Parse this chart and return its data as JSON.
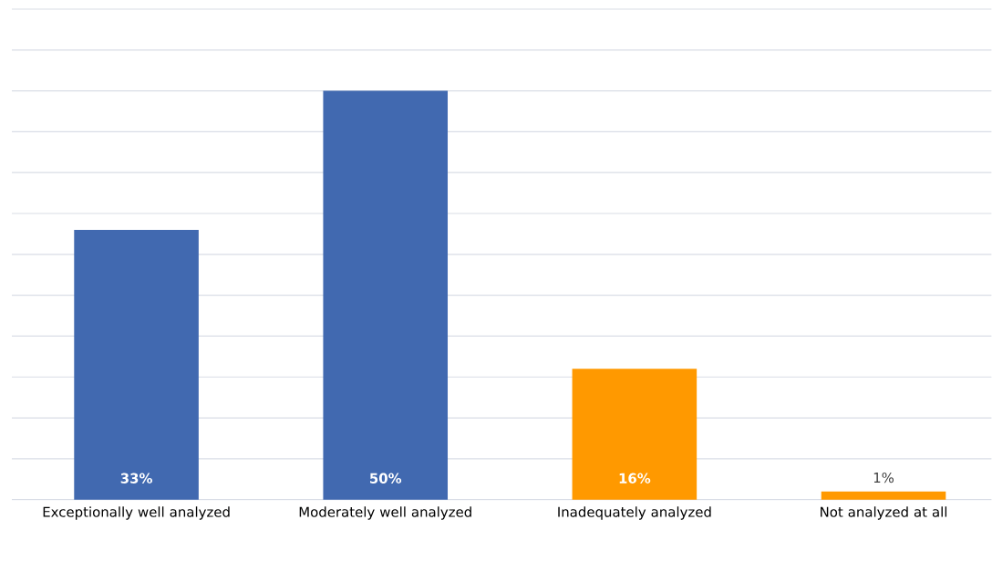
{
  "chart_data": {
    "type": "bar",
    "categories": [
      "Exceptionally well analyzed",
      "Moderately well analyzed",
      "Inadequately analyzed",
      "Not analyzed at all"
    ],
    "values": [
      33,
      50,
      16,
      1
    ],
    "colors": [
      "#4169b0",
      "#4169b0",
      "#ff9900",
      "#ff9900"
    ],
    "value_labels": [
      "33%",
      "50%",
      "16%",
      "1%"
    ],
    "grid": "y",
    "tick_labels": "x"
  }
}
